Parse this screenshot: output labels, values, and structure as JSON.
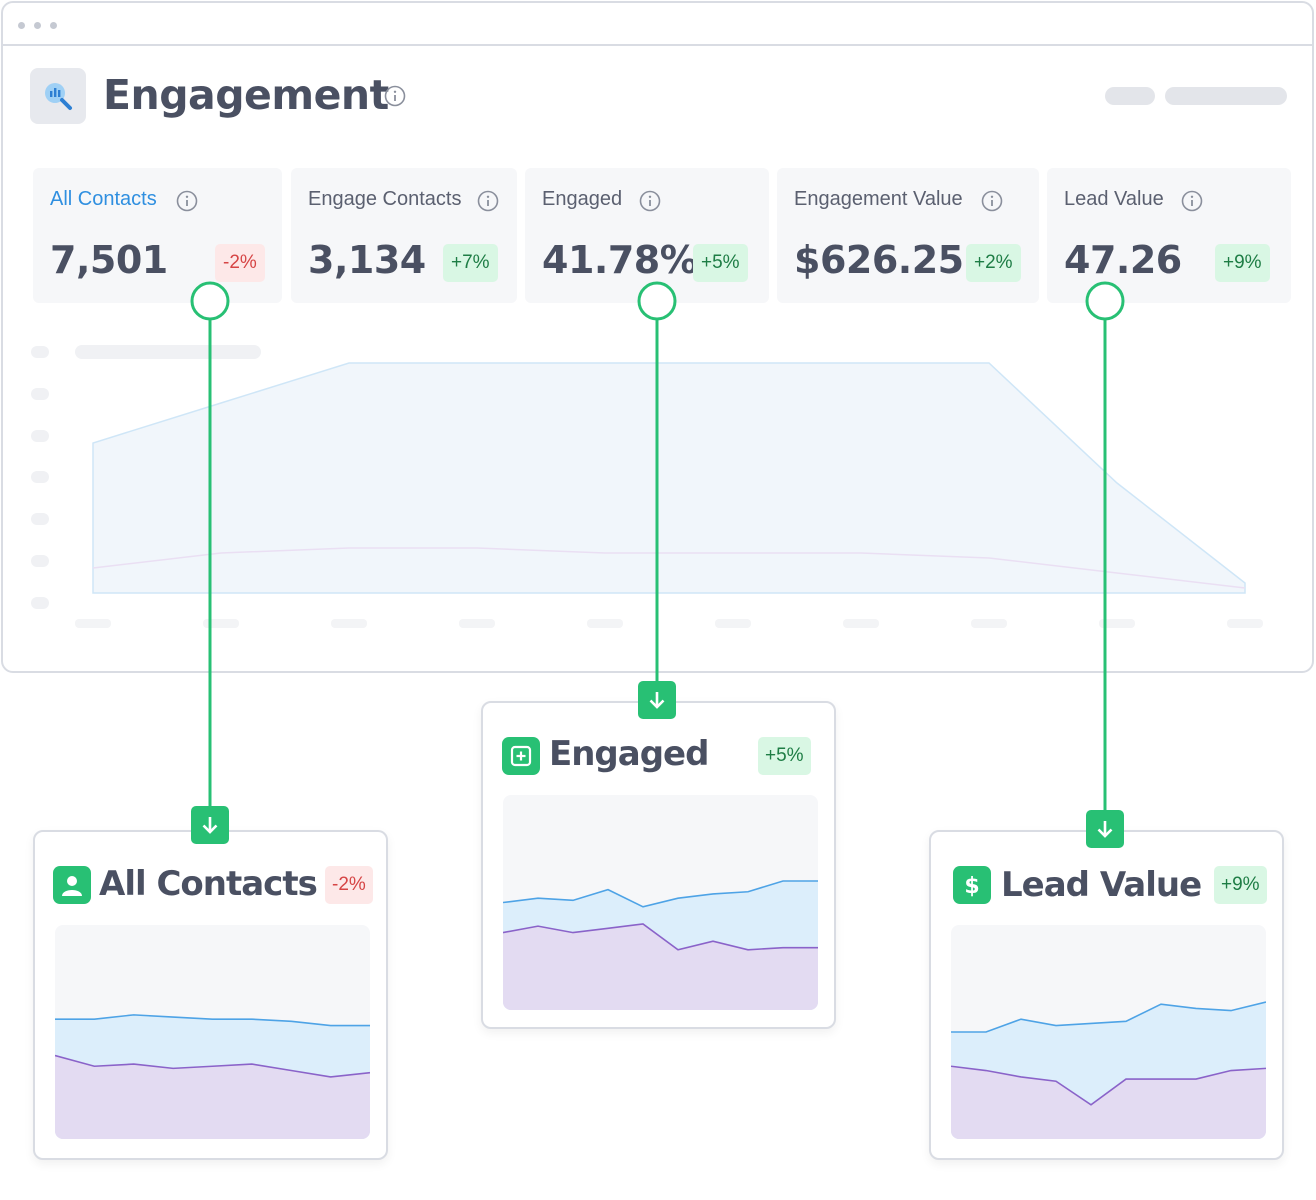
{
  "header": {
    "title": "Engagement",
    "icon": "analytics-search-icon"
  },
  "stats": [
    {
      "label": "All Contacts",
      "value": "7,501",
      "change": "-2%",
      "trend": "negative",
      "active": true
    },
    {
      "label": "Engage Contacts",
      "value": "3,134",
      "change": "+7%",
      "trend": "positive",
      "active": false
    },
    {
      "label": "Engaged",
      "value": "41.78%",
      "change": "+5%",
      "trend": "positive",
      "active": false
    },
    {
      "label": "Engagement Value",
      "value": "$626.25",
      "change": "+2%",
      "trend": "positive",
      "active": false
    },
    {
      "label": "Lead Value",
      "value": "47.26",
      "change": "+9%",
      "trend": "positive",
      "active": false
    }
  ],
  "details": [
    {
      "title": "All Contacts",
      "change": "-2%",
      "trend": "negative",
      "icon": "user-icon"
    },
    {
      "title": "Engaged",
      "change": "+5%",
      "trend": "positive",
      "icon": "plus-square-icon"
    },
    {
      "title": "Lead Value",
      "change": "+9%",
      "trend": "positive",
      "icon": "dollar-icon"
    }
  ],
  "colors": {
    "accent_green": "#28c074",
    "link_blue": "#2f8fe0",
    "series_blue": "#4ea3e6",
    "series_purple": "#8a63c9",
    "negative": "#d64545",
    "positive": "#1e7d45"
  },
  "chart_data": [
    {
      "type": "area",
      "description_scope": "main engagement background chart (unlabeled)",
      "x": [
        0,
        1,
        2,
        3,
        4,
        5,
        6,
        7,
        8,
        9
      ],
      "series": [
        {
          "values": [
            30,
            38,
            46,
            46,
            46,
            46,
            46,
            46,
            22,
            2
          ]
        },
        {
          "values": [
            5,
            8,
            9,
            9,
            8,
            8,
            8,
            7,
            4,
            1
          ]
        }
      ],
      "ylim": [
        0,
        50
      ]
    },
    {
      "type": "area",
      "description_scope": "All Contacts mini chart",
      "x": [
        0,
        1,
        2,
        3,
        4,
        5,
        6,
        7,
        8
      ],
      "series": [
        {
          "values": [
            56,
            56,
            58,
            57,
            56,
            56,
            55,
            53,
            53
          ]
        },
        {
          "values": [
            39,
            34,
            35,
            33,
            34,
            35,
            32,
            29,
            31
          ]
        }
      ],
      "ylim": [
        0,
        100
      ]
    },
    {
      "type": "area",
      "description_scope": "Engaged mini chart",
      "x": [
        0,
        1,
        2,
        3,
        4,
        5,
        6,
        7,
        8,
        9
      ],
      "series": [
        {
          "values": [
            50,
            52,
            51,
            56,
            48,
            52,
            54,
            55,
            60,
            60
          ]
        },
        {
          "values": [
            36,
            39,
            36,
            38,
            40,
            28,
            32,
            28,
            29,
            29
          ]
        }
      ],
      "ylim": [
        0,
        100
      ]
    },
    {
      "type": "area",
      "description_scope": "Lead Value mini chart",
      "x": [
        0,
        1,
        2,
        3,
        4,
        5,
        6,
        7,
        8,
        9
      ],
      "series": [
        {
          "values": [
            50,
            50,
            56,
            53,
            54,
            55,
            63,
            61,
            60,
            64
          ]
        },
        {
          "values": [
            34,
            32,
            29,
            27,
            16,
            28,
            28,
            28,
            32,
            33
          ]
        }
      ],
      "ylim": [
        0,
        100
      ]
    }
  ]
}
